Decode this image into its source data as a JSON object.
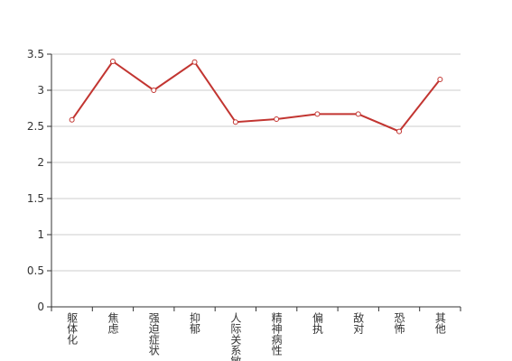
{
  "chart_data": {
    "type": "line",
    "categories": [
      "躯体化",
      "焦虑",
      "强迫症状",
      "抑郁",
      "人际关系敏感",
      "精神病性",
      "偏执",
      "敌对",
      "恐怖",
      "其他"
    ],
    "values": [
      2.59,
      3.4,
      3.0,
      3.39,
      2.56,
      2.6,
      2.67,
      2.67,
      2.43,
      3.15
    ],
    "color": "#c23531",
    "ylim": [
      0,
      3.5
    ],
    "yticks": [
      0,
      0.5,
      1,
      1.5,
      2,
      2.5,
      3,
      3.5
    ],
    "grid": true
  }
}
